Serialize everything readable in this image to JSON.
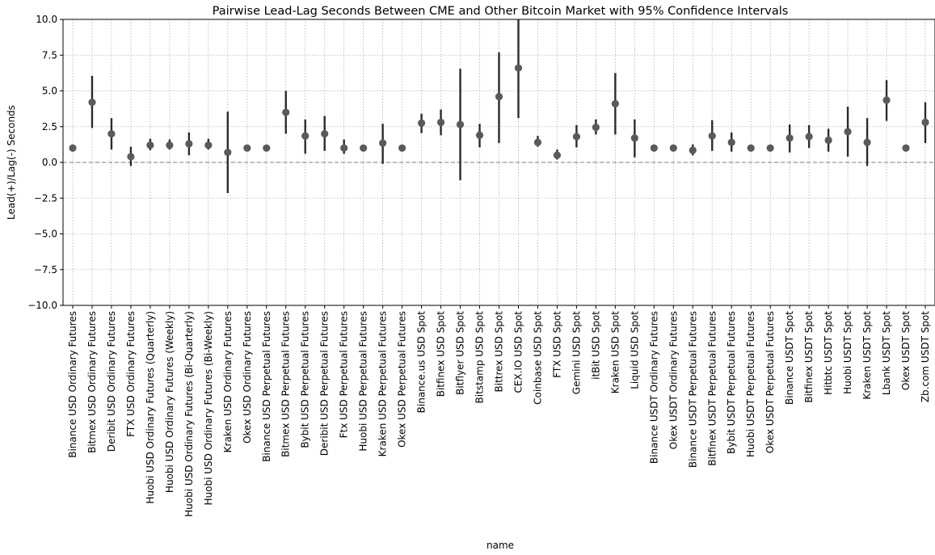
{
  "chart_data": {
    "type": "scatter",
    "title": "Pairwise Lead-Lag Seconds Between CME and Other Bitcoin Market with 95% Confidence Intervals",
    "xlabel": "name",
    "ylabel": "Lead(+)/Lag(-) Seconds",
    "ylim": [
      -10,
      10
    ],
    "yticks": [
      -10.0,
      -7.5,
      -5.0,
      -2.5,
      0.0,
      2.5,
      5.0,
      7.5,
      10.0
    ],
    "ytick_labels": [
      "−10.0",
      "−7.5",
      "−5.0",
      "−2.5",
      "0.0",
      "2.5",
      "5.0",
      "7.5",
      "10.0"
    ],
    "grid": true,
    "reference_line": 0,
    "categories": [
      "Binance USD Ordinary Futures",
      "Bitmex USD Ordinary Futures",
      "Deribit USD Ordinary Futures",
      "FTX USD Ordinary Futures",
      "Huobi USD Ordinary Futures (Quarterly)",
      "Huobi USD Ordinary Futures (Weekly)",
      "Huobi USD Ordinary Futures (Bi-Quarterly)",
      "Huobi USD Ordinary Futures (Bi-Weekly)",
      "Kraken USD Ordinary Futures",
      "Okex USD Ordinary Futures",
      "Binance USD Perpetual Futures",
      "Bitmex USD Perpetual Futures",
      "Bybit USD Perpetual Futures",
      "Deribit USD Perpetual Futures",
      "Ftx USD Perpetual Futures",
      "Huobi USD Perpetual Futures",
      "Kraken USD Perpetual Futures",
      "Okex USD Perpetual Futures",
      "Binance.us USD Spot",
      "Bitfinex USD Spot",
      "Bitflyer USD Spot",
      "Bitstamp USD Spot",
      "Bittrex USD Spot",
      "CEX.IO USD Spot",
      "Coinbase USD Spot",
      "FTX USD Spot",
      "Gemini USD Spot",
      "itBit USD Spot",
      "Kraken USD Spot",
      "Liquid USD Spot",
      "Binance USDT Ordinary Futures",
      "Okex USDT Ordinary Futures",
      "Binance USDT Perpetual Futures",
      "Bitfinex USDT Perpetual Futures",
      "Bybit USDT Perpetual Futures",
      "Huobi USDT Perpetual Futures",
      "Okex USDT Perpetual Futures",
      "Binance USDT Spot",
      "Bitfinex USDT Spot",
      "Hitbtc USDT Spot",
      "Huobi USDT Spot",
      "Kraken USDT Spot",
      "Lbank USDT Spot",
      "Okex USDT Spot",
      "Zb.com USDT Spot"
    ],
    "values": [
      1.0,
      4.2,
      2.0,
      0.4,
      1.2,
      1.2,
      1.3,
      1.2,
      0.7,
      1.0,
      1.0,
      3.5,
      1.85,
      2.0,
      1.0,
      1.0,
      1.35,
      1.0,
      2.75,
      2.8,
      2.65,
      1.9,
      4.6,
      6.6,
      1.4,
      0.5,
      1.8,
      2.45,
      4.1,
      1.7,
      1.0,
      1.0,
      0.85,
      1.85,
      1.4,
      1.0,
      1.0,
      1.7,
      1.8,
      1.55,
      2.15,
      1.4,
      4.35,
      1.0,
      2.8
    ],
    "ci_lower": [
      null,
      2.4,
      0.9,
      -0.25,
      0.85,
      0.9,
      0.5,
      0.9,
      -2.15,
      null,
      null,
      2.0,
      0.6,
      0.8,
      0.6,
      null,
      -0.1,
      null,
      2.05,
      1.9,
      -1.25,
      1.05,
      1.35,
      3.1,
      1.1,
      0.2,
      1.05,
      1.95,
      1.95,
      0.35,
      null,
      null,
      0.5,
      0.8,
      0.75,
      null,
      null,
      0.7,
      1.0,
      0.75,
      0.4,
      -0.25,
      2.9,
      null,
      1.35
    ],
    "ci_upper": [
      null,
      6.05,
      3.1,
      1.1,
      1.65,
      1.6,
      2.1,
      1.65,
      3.55,
      null,
      null,
      5.0,
      3.0,
      3.25,
      1.6,
      null,
      2.7,
      null,
      3.4,
      3.7,
      6.55,
      2.7,
      7.7,
      10.0,
      1.85,
      0.9,
      2.6,
      3.0,
      6.25,
      3.0,
      null,
      null,
      1.25,
      2.95,
      2.1,
      null,
      null,
      2.65,
      2.6,
      2.35,
      3.9,
      3.1,
      5.75,
      null,
      4.2
    ],
    "colors": {
      "point": "#5a5a5a",
      "errorbar": "#2b2b2b",
      "grid": "#b0b0b0",
      "zero_line": "#808080",
      "axis": "#000000"
    }
  }
}
